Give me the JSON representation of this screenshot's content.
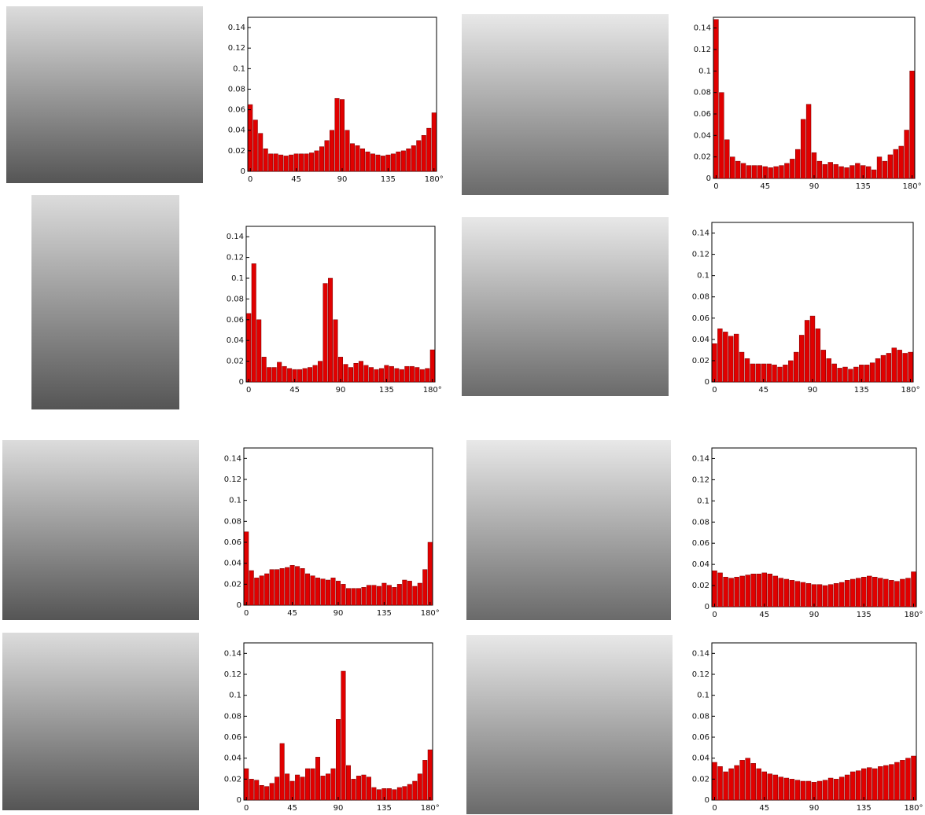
{
  "chart_data": [
    {
      "type": "bar",
      "color": "#e00000",
      "x": [
        0,
        5,
        10,
        15,
        20,
        25,
        30,
        35,
        40,
        45,
        50,
        55,
        60,
        65,
        70,
        75,
        80,
        85,
        90,
        95,
        100,
        105,
        110,
        115,
        120,
        125,
        130,
        135,
        140,
        145,
        150,
        155,
        160,
        165,
        170,
        175,
        180
      ],
      "values": [
        0.065,
        0.05,
        0.037,
        0.022,
        0.017,
        0.017,
        0.016,
        0.015,
        0.016,
        0.017,
        0.017,
        0.017,
        0.018,
        0.02,
        0.024,
        0.03,
        0.04,
        0.071,
        0.07,
        0.04,
        0.027,
        0.025,
        0.022,
        0.019,
        0.017,
        0.016,
        0.015,
        0.016,
        0.017,
        0.019,
        0.02,
        0.022,
        0.025,
        0.03,
        0.035,
        0.042,
        0.057
      ],
      "xlim": [
        -2.5,
        182.5
      ],
      "ylim": [
        0,
        0.15
      ],
      "xticks": [
        0,
        45,
        90,
        135,
        {
          "value": 180,
          "label": "180°"
        }
      ],
      "yticks": [
        0,
        0.02,
        0.04,
        0.06,
        0.08,
        0.1,
        0.12,
        0.14
      ]
    },
    {
      "type": "bar",
      "color": "#e00000",
      "x": [
        0,
        5,
        10,
        15,
        20,
        25,
        30,
        35,
        40,
        45,
        50,
        55,
        60,
        65,
        70,
        75,
        80,
        85,
        90,
        95,
        100,
        105,
        110,
        115,
        120,
        125,
        130,
        135,
        140,
        145,
        150,
        155,
        160,
        165,
        170,
        175,
        180
      ],
      "values": [
        0.148,
        0.08,
        0.036,
        0.02,
        0.016,
        0.014,
        0.012,
        0.012,
        0.012,
        0.011,
        0.01,
        0.011,
        0.012,
        0.014,
        0.018,
        0.027,
        0.055,
        0.069,
        0.024,
        0.016,
        0.013,
        0.015,
        0.013,
        0.011,
        0.01,
        0.012,
        0.014,
        0.012,
        0.011,
        0.008,
        0.02,
        0.016,
        0.022,
        0.027,
        0.03,
        0.045,
        0.1
      ],
      "xlim": [
        -2.5,
        182.5
      ],
      "ylim": [
        0,
        0.15
      ],
      "xticks": [
        0,
        45,
        90,
        135,
        {
          "value": 180,
          "label": "180°"
        }
      ],
      "yticks": [
        0,
        0.02,
        0.04,
        0.06,
        0.08,
        0.1,
        0.12,
        0.14
      ]
    },
    {
      "type": "bar",
      "color": "#e00000",
      "x": [
        0,
        5,
        10,
        15,
        20,
        25,
        30,
        35,
        40,
        45,
        50,
        55,
        60,
        65,
        70,
        75,
        80,
        85,
        90,
        95,
        100,
        105,
        110,
        115,
        120,
        125,
        130,
        135,
        140,
        145,
        150,
        155,
        160,
        165,
        170,
        175,
        180
      ],
      "values": [
        0.066,
        0.114,
        0.06,
        0.024,
        0.014,
        0.014,
        0.019,
        0.015,
        0.013,
        0.012,
        0.012,
        0.013,
        0.014,
        0.016,
        0.02,
        0.095,
        0.1,
        0.06,
        0.024,
        0.017,
        0.014,
        0.018,
        0.02,
        0.016,
        0.014,
        0.012,
        0.013,
        0.016,
        0.015,
        0.013,
        0.012,
        0.015,
        0.015,
        0.014,
        0.012,
        0.013,
        0.031
      ],
      "xlim": [
        -2.5,
        182.5
      ],
      "ylim": [
        0,
        0.15
      ],
      "xticks": [
        0,
        45,
        90,
        135,
        {
          "value": 180,
          "label": "180°"
        }
      ],
      "yticks": [
        0,
        0.02,
        0.04,
        0.06,
        0.08,
        0.1,
        0.12,
        0.14
      ]
    },
    {
      "type": "bar",
      "color": "#e00000",
      "x": [
        0,
        5,
        10,
        15,
        20,
        25,
        30,
        35,
        40,
        45,
        50,
        55,
        60,
        65,
        70,
        75,
        80,
        85,
        90,
        95,
        100,
        105,
        110,
        115,
        120,
        125,
        130,
        135,
        140,
        145,
        150,
        155,
        160,
        165,
        170,
        175,
        180
      ],
      "values": [
        0.036,
        0.05,
        0.047,
        0.043,
        0.045,
        0.028,
        0.022,
        0.017,
        0.017,
        0.017,
        0.017,
        0.016,
        0.014,
        0.016,
        0.02,
        0.028,
        0.044,
        0.058,
        0.062,
        0.05,
        0.03,
        0.022,
        0.017,
        0.013,
        0.014,
        0.012,
        0.014,
        0.016,
        0.016,
        0.018,
        0.022,
        0.025,
        0.027,
        0.032,
        0.03,
        0.027,
        0.028
      ],
      "xlim": [
        -2.5,
        182.5
      ],
      "ylim": [
        0,
        0.15
      ],
      "xticks": [
        0,
        45,
        90,
        135,
        {
          "value": 180,
          "label": "180°"
        }
      ],
      "yticks": [
        0,
        0.02,
        0.04,
        0.06,
        0.08,
        0.1,
        0.12,
        0.14
      ]
    },
    {
      "type": "bar",
      "color": "#e00000",
      "x": [
        0,
        5,
        10,
        15,
        20,
        25,
        30,
        35,
        40,
        45,
        50,
        55,
        60,
        65,
        70,
        75,
        80,
        85,
        90,
        95,
        100,
        105,
        110,
        115,
        120,
        125,
        130,
        135,
        140,
        145,
        150,
        155,
        160,
        165,
        170,
        175,
        180
      ],
      "values": [
        0.07,
        0.033,
        0.026,
        0.028,
        0.03,
        0.034,
        0.034,
        0.035,
        0.036,
        0.038,
        0.037,
        0.035,
        0.03,
        0.028,
        0.026,
        0.025,
        0.024,
        0.026,
        0.023,
        0.02,
        0.016,
        0.016,
        0.016,
        0.017,
        0.019,
        0.019,
        0.018,
        0.021,
        0.019,
        0.017,
        0.02,
        0.024,
        0.023,
        0.018,
        0.021,
        0.034,
        0.06
      ],
      "xlim": [
        -2.5,
        182.5
      ],
      "ylim": [
        0,
        0.15
      ],
      "xticks": [
        0,
        45,
        90,
        135,
        {
          "value": 180,
          "label": "180°"
        }
      ],
      "yticks": [
        0,
        0.02,
        0.04,
        0.06,
        0.08,
        0.1,
        0.12,
        0.14
      ]
    },
    {
      "type": "bar",
      "color": "#e00000",
      "x": [
        0,
        5,
        10,
        15,
        20,
        25,
        30,
        35,
        40,
        45,
        50,
        55,
        60,
        65,
        70,
        75,
        80,
        85,
        90,
        95,
        100,
        105,
        110,
        115,
        120,
        125,
        130,
        135,
        140,
        145,
        150,
        155,
        160,
        165,
        170,
        175,
        180
      ],
      "values": [
        0.034,
        0.032,
        0.028,
        0.027,
        0.028,
        0.029,
        0.03,
        0.031,
        0.031,
        0.032,
        0.031,
        0.029,
        0.027,
        0.026,
        0.025,
        0.024,
        0.023,
        0.022,
        0.021,
        0.021,
        0.02,
        0.021,
        0.022,
        0.023,
        0.025,
        0.026,
        0.027,
        0.028,
        0.029,
        0.028,
        0.027,
        0.026,
        0.025,
        0.024,
        0.026,
        0.027,
        0.033
      ],
      "xlim": [
        -2.5,
        182.5
      ],
      "ylim": [
        0,
        0.15
      ],
      "xticks": [
        0,
        45,
        90,
        135,
        {
          "value": 180,
          "label": "180°"
        }
      ],
      "yticks": [
        0,
        0.02,
        0.04,
        0.06,
        0.08,
        0.1,
        0.12,
        0.14
      ]
    },
    {
      "type": "bar",
      "color": "#e00000",
      "x": [
        0,
        5,
        10,
        15,
        20,
        25,
        30,
        35,
        40,
        45,
        50,
        55,
        60,
        65,
        70,
        75,
        80,
        85,
        90,
        95,
        100,
        105,
        110,
        115,
        120,
        125,
        130,
        135,
        140,
        145,
        150,
        155,
        160,
        165,
        170,
        175,
        180
      ],
      "values": [
        0.03,
        0.02,
        0.019,
        0.014,
        0.013,
        0.016,
        0.022,
        0.054,
        0.025,
        0.018,
        0.024,
        0.022,
        0.03,
        0.03,
        0.041,
        0.023,
        0.025,
        0.03,
        0.077,
        0.123,
        0.033,
        0.02,
        0.023,
        0.024,
        0.022,
        0.012,
        0.01,
        0.011,
        0.011,
        0.01,
        0.012,
        0.013,
        0.015,
        0.018,
        0.025,
        0.038,
        0.048
      ],
      "xlim": [
        -2.5,
        182.5
      ],
      "ylim": [
        0,
        0.15
      ],
      "xticks": [
        0,
        45,
        90,
        135,
        {
          "value": 180,
          "label": "180°"
        }
      ],
      "yticks": [
        0,
        0.02,
        0.04,
        0.06,
        0.08,
        0.1,
        0.12,
        0.14
      ]
    },
    {
      "type": "bar",
      "color": "#e00000",
      "x": [
        0,
        5,
        10,
        15,
        20,
        25,
        30,
        35,
        40,
        45,
        50,
        55,
        60,
        65,
        70,
        75,
        80,
        85,
        90,
        95,
        100,
        105,
        110,
        115,
        120,
        125,
        130,
        135,
        140,
        145,
        150,
        155,
        160,
        165,
        170,
        175,
        180
      ],
      "values": [
        0.036,
        0.032,
        0.027,
        0.03,
        0.033,
        0.038,
        0.04,
        0.035,
        0.03,
        0.027,
        0.025,
        0.024,
        0.022,
        0.021,
        0.02,
        0.019,
        0.018,
        0.018,
        0.017,
        0.018,
        0.019,
        0.021,
        0.02,
        0.022,
        0.024,
        0.027,
        0.028,
        0.03,
        0.031,
        0.03,
        0.032,
        0.033,
        0.034,
        0.036,
        0.038,
        0.04,
        0.042
      ],
      "xlim": [
        -2.5,
        182.5
      ],
      "ylim": [
        0,
        0.15
      ],
      "xticks": [
        0,
        45,
        90,
        135,
        {
          "value": 180,
          "label": "180°"
        }
      ],
      "yticks": [
        0,
        0.02,
        0.04,
        0.06,
        0.08,
        0.1,
        0.12,
        0.14
      ]
    }
  ]
}
